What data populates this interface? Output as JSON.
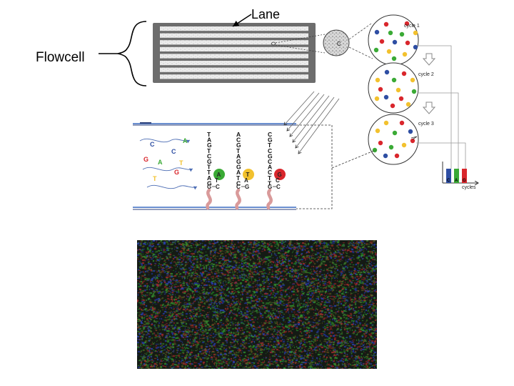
{
  "labels": {
    "lane": "Lane",
    "flowcell": "Flowcell",
    "cycle1": "cycle 1",
    "cycle2": "cycle 2",
    "cycle3": "cycle 3",
    "cycles_axis": "cycles",
    "cluster_letter": "C"
  },
  "free_nucleotides": [
    "C",
    "A",
    "C",
    "G",
    "A",
    "T",
    "G",
    "T"
  ],
  "strands": [
    {
      "template": [
        "T",
        "A",
        "G",
        "T",
        "C",
        "G",
        "T",
        "T",
        "A",
        "G"
      ],
      "incorporated": "A",
      "pair_top": "T",
      "pair_bottom": "C",
      "bottom_left": "G"
    },
    {
      "template": [
        "A",
        "C",
        "G",
        "T",
        "A",
        "G",
        "G",
        "A",
        "T",
        "C"
      ],
      "incorporated": "T",
      "pair_top": "A",
      "pair_bottom": "G",
      "bottom_left": "C"
    },
    {
      "template": [
        "C",
        "G",
        "T",
        "C",
        "G",
        "C",
        "A",
        "C",
        "T",
        "T"
      ],
      "incorporated": "G",
      "pair_top": "C",
      "pair_bottom": "C",
      "bottom_left": "G"
    }
  ],
  "histogram_bars": [
    "C",
    "A",
    "G"
  ],
  "colors": {
    "blue": "#2e4ea3",
    "green": "#3aaa35",
    "yellow": "#f2c12e",
    "red": "#d9262c",
    "flowcell_body": "#6d6d6d",
    "lane_fill": "#e6e6e6",
    "strand": "#d99a9a"
  }
}
